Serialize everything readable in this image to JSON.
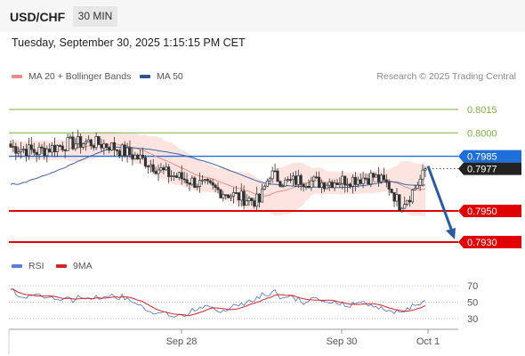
{
  "header": {
    "symbol": "USD/CHF",
    "timeframe": "30 MIN",
    "datetime": "Tuesday, September 30, 2025 1:15:15 PM CET"
  },
  "legend": {
    "ma_bb": {
      "label": "MA 20 + Bollinger Bands",
      "color": "#f08a84"
    },
    "ma50": {
      "label": "MA 50",
      "color": "#2c5496"
    },
    "credit": "Research © 2025 Trading Central"
  },
  "rsi_legend": {
    "rsi": {
      "label": "RSI",
      "color": "#5a7fd6"
    },
    "ma9": {
      "label": "9MA",
      "color": "#dd2222"
    }
  },
  "chart_data": {
    "type": "candlestick",
    "levels": [
      {
        "value": 0.8015,
        "label": "0.8015",
        "kind": "resistance",
        "color": "#7cb342"
      },
      {
        "value": 0.8,
        "label": "0.8000",
        "kind": "resistance",
        "color": "#7cb342"
      },
      {
        "value": 0.7985,
        "label": "0.7985",
        "kind": "pivot",
        "color": "#1e6fd9"
      },
      {
        "value": 0.7977,
        "label": "0.7977",
        "kind": "last-price",
        "color": "#222222"
      },
      {
        "value": 0.795,
        "label": "0.7950",
        "kind": "support",
        "color": "#e00000"
      },
      {
        "value": 0.793,
        "label": "0.7930",
        "kind": "support",
        "color": "#e00000"
      }
    ],
    "y_range": [
      0.792,
      0.803
    ],
    "forecast_arrow": {
      "from": 0.7977,
      "to": 0.793,
      "color": "#2c5aa0"
    },
    "xticks": [
      "Sep 28",
      "Sep 30",
      "Oct 1"
    ],
    "rsi": {
      "levels": [
        70,
        50,
        30
      ],
      "range": [
        20,
        80
      ]
    }
  }
}
